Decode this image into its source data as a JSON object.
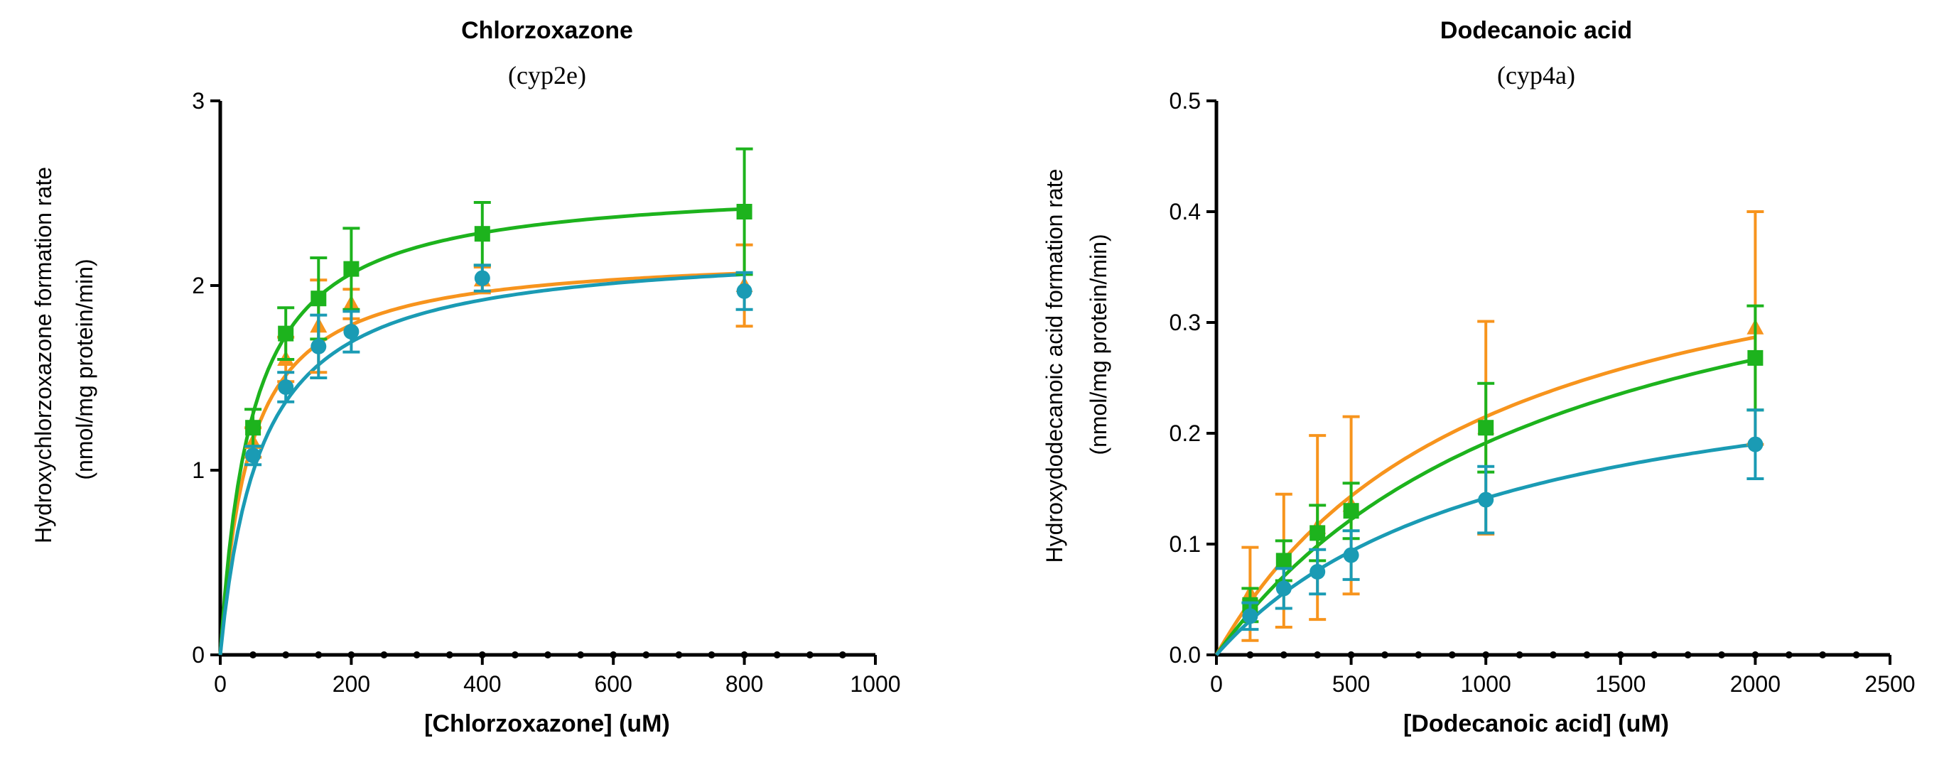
{
  "chart_data": [
    {
      "type": "scatter",
      "title": "Chlorzoxazone",
      "subtitle": "(cyp2e)",
      "ylabel_line1": "Hydroxychlorzoxazone formation rate",
      "ylabel_line2": "(nmol/mg protein/min)",
      "xlabel": "[Chlorzoxazone] (uM)",
      "xlim": [
        0,
        1000
      ],
      "ylim": [
        0,
        3
      ],
      "xticks": [
        0,
        200,
        400,
        600,
        800,
        1000
      ],
      "yticks": [
        0,
        1,
        2,
        3
      ],
      "series": [
        {
          "name": "orange",
          "color": "#F7941D",
          "marker": "triangle",
          "x": [
            50,
            100,
            150,
            200,
            400,
            800
          ],
          "y": [
            1.15,
            1.6,
            1.78,
            1.9,
            2.03,
            2.0
          ],
          "err": [
            0.08,
            0.12,
            0.25,
            0.08,
            0.07,
            0.22
          ],
          "fit": {
            "vmax": 2.18,
            "km": 44
          }
        },
        {
          "name": "green",
          "color": "#1DB31D",
          "marker": "square",
          "x": [
            50,
            100,
            150,
            200,
            400,
            800
          ],
          "y": [
            1.23,
            1.74,
            1.93,
            2.09,
            2.28,
            2.4
          ],
          "err": [
            0.1,
            0.14,
            0.22,
            0.22,
            0.17,
            0.34
          ],
          "fit": {
            "vmax": 2.56,
            "km": 48
          }
        },
        {
          "name": "teal",
          "color": "#1A9BB4",
          "marker": "circle",
          "x": [
            50,
            100,
            150,
            200,
            400,
            800
          ],
          "y": [
            1.08,
            1.45,
            1.67,
            1.75,
            2.04,
            1.97
          ],
          "err": [
            0.05,
            0.08,
            0.17,
            0.11,
            0.07,
            0.1
          ],
          "fit": {
            "vmax": 2.22,
            "km": 62
          }
        }
      ]
    },
    {
      "type": "scatter",
      "title": "Dodecanoic acid",
      "subtitle": "(cyp4a)",
      "ylabel_line1": "Hydroxydodecanoic acid  formation rate",
      "ylabel_line2": "(nmol/mg protein/min)",
      "xlabel": "[Dodecanoic acid] (uM)",
      "xlim": [
        0,
        2500
      ],
      "ylim": [
        0,
        0.5
      ],
      "xticks": [
        0,
        500,
        1000,
        1500,
        2000,
        2500
      ],
      "yticks": [
        0.0,
        0.1,
        0.2,
        0.3,
        0.4,
        0.5
      ],
      "series": [
        {
          "name": "orange",
          "color": "#F7941D",
          "marker": "triangle",
          "x": [
            125,
            250,
            375,
            500,
            1000,
            2000
          ],
          "y": [
            0.055,
            0.085,
            0.115,
            0.135,
            0.205,
            0.295
          ],
          "err": [
            0.042,
            0.06,
            0.083,
            0.08,
            0.096,
            0.105
          ],
          "fit": {
            "vmax": 0.43,
            "km": 1000
          }
        },
        {
          "name": "green",
          "color": "#1DB31D",
          "marker": "square",
          "x": [
            125,
            250,
            375,
            500,
            1000,
            2000
          ],
          "y": [
            0.045,
            0.085,
            0.11,
            0.13,
            0.205,
            0.268
          ],
          "err": [
            0.015,
            0.018,
            0.025,
            0.025,
            0.04,
            0.047
          ],
          "fit": {
            "vmax": 0.44,
            "km": 1300
          }
        },
        {
          "name": "teal",
          "color": "#1A9BB4",
          "marker": "circle",
          "x": [
            125,
            250,
            375,
            500,
            1000,
            2000
          ],
          "y": [
            0.035,
            0.06,
            0.075,
            0.09,
            0.14,
            0.19
          ],
          "err": [
            0.012,
            0.018,
            0.02,
            0.022,
            0.03,
            0.031
          ],
          "fit": {
            "vmax": 0.29,
            "km": 1050
          }
        }
      ]
    }
  ]
}
